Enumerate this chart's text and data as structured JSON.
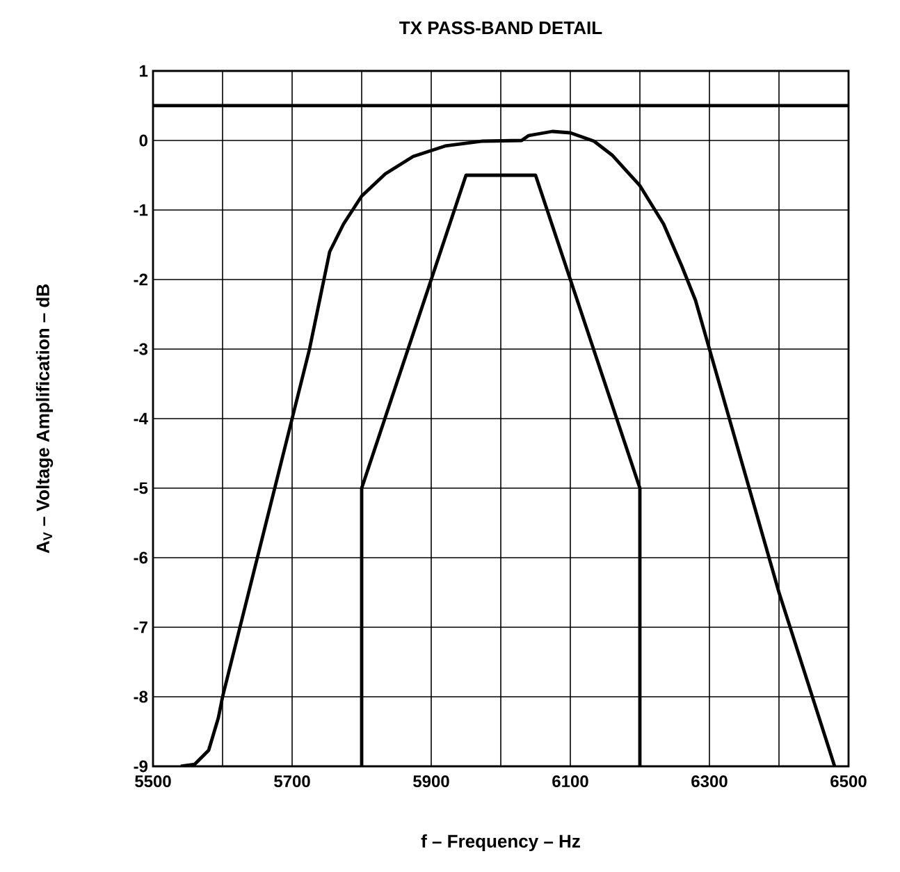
{
  "chart_data": {
    "type": "line",
    "title": "TX PASS-BAND DETAIL",
    "xlabel": "f – Frequency – Hz",
    "ylabel": "A$_{V}$ – Voltage Amplification – dB",
    "xlim": [
      5500,
      6500
    ],
    "ylim": [
      -9,
      1
    ],
    "xticks": [
      5500,
      {
        "value": 5600,
        "label": null
      },
      5700,
      {
        "value": 5800,
        "label": null
      },
      5900,
      {
        "value": 6000,
        "label": null
      },
      6100,
      {
        "value": 6200,
        "label": null
      },
      6300,
      {
        "value": 6400,
        "label": null
      },
      6500
    ],
    "yticks": [
      -9,
      -8,
      -7,
      -6,
      -5,
      -4,
      -3,
      -2,
      -1,
      0,
      1
    ],
    "grid": true,
    "marker": "none",
    "line_style": "solid",
    "series": [
      {
        "color": "#000000",
        "x": [
          5500,
          6500
        ],
        "values": [
          0.5,
          0.5
        ]
      },
      {
        "color": "#000000",
        "x": [
          5800,
          5800,
          5950,
          6050,
          6200,
          6200
        ],
        "values": [
          -9,
          -5,
          -0.5,
          -0.5,
          -5,
          -9
        ]
      },
      {
        "color": "#000000",
        "x": [
          5540,
          5560,
          5580,
          5594,
          5600,
          5700,
          5725,
          5754,
          5774,
          5800,
          5834,
          5874,
          5920,
          5974,
          6030,
          6040,
          6074,
          6100,
          6134,
          6160,
          6200,
          6234,
          6260,
          6280,
          6300,
          6400,
          6480
        ],
        "values": [
          -9,
          -8.97,
          -8.77,
          -8.3,
          -8,
          -4,
          -3,
          -1.6,
          -1.2,
          -0.8,
          -0.48,
          -0.23,
          -0.08,
          -0.01,
          0,
          0.07,
          0.13,
          0.11,
          -0.01,
          -0.21,
          -0.65,
          -1.2,
          -1.8,
          -2.3,
          -3,
          -6.5,
          -9
        ]
      }
    ]
  }
}
